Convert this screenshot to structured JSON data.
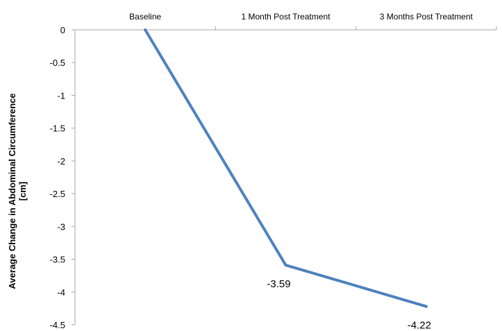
{
  "chart_data": {
    "type": "line",
    "categories": [
      "Baseline",
      "1 Month Post Treatment",
      "3 Months Post Treatment"
    ],
    "series": [
      {
        "values": [
          0,
          -3.59,
          -4.22
        ]
      }
    ],
    "data_labels": [
      "",
      "-3.59",
      "-4.22"
    ],
    "ylabel_lines": [
      "Average Change in Abdominal Circumference",
      "[cm]"
    ],
    "xlabel": "",
    "ylim": [
      -4.5,
      0
    ],
    "y_ticks": [
      0,
      -0.5,
      -1,
      -1.5,
      -2,
      -2.5,
      -3,
      -3.5,
      -4,
      -4.5
    ],
    "y_tick_labels": [
      "0",
      "-0.5",
      "-1",
      "-1.5",
      "-2",
      "-2.5",
      "-3",
      "-3.5",
      "-4",
      "-4.5"
    ],
    "x_axis_position": "top",
    "grid": false,
    "legend": "none",
    "colors": {
      "line": "#4f81bd",
      "axis": "#a6a6a6",
      "text": "#000000"
    }
  }
}
